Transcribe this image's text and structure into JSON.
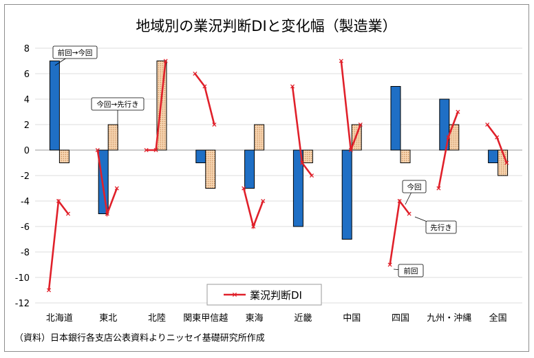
{
  "chart_data": {
    "type": "bar",
    "title": "地域別の業況判断DIと変化幅（製造業）",
    "categories": [
      "北海道",
      "東北",
      "北陸",
      "関東甲信越",
      "東海",
      "近畿",
      "中国",
      "四国",
      "九州・沖縄",
      "全国"
    ],
    "ylim": [
      -12,
      8
    ],
    "yticks": [
      8,
      6,
      4,
      2,
      0,
      -2,
      -4,
      -6,
      -8,
      -10,
      -12
    ],
    "grid": true,
    "bar_series": [
      {
        "values": [
          7,
          -5,
          0,
          -1,
          -3,
          -6,
          -7,
          5,
          4,
          -1
        ],
        "color": "#1f6fc5"
      },
      {
        "values": [
          -1,
          2,
          7,
          -3,
          2,
          -1,
          2,
          -1,
          2,
          -2
        ],
        "color": "#f4c9a0"
      }
    ],
    "line_series": {
      "name": "業況判断DI",
      "color": "#e0202a",
      "points": [
        [
          -11,
          -4,
          -5
        ],
        [
          0,
          -5,
          -3
        ],
        [
          0,
          0,
          7
        ],
        [
          6,
          5,
          2
        ],
        [
          -3,
          -6,
          -4
        ],
        [
          5,
          -1,
          -2
        ],
        [
          7,
          0,
          2
        ],
        [
          -9,
          -4,
          -5
        ],
        [
          -3,
          1,
          3
        ],
        [
          2,
          1,
          -1
        ]
      ]
    },
    "annotations": {
      "prev_to_now": "前回→今回",
      "now_to_forecast": "今回→先行き",
      "now": "今回",
      "forecast": "先行き",
      "prev": "前回"
    },
    "legend_position": "bottom-center",
    "source": "（資料）日本銀行各支店公表資料よりニッセイ基礎研究所作成"
  }
}
